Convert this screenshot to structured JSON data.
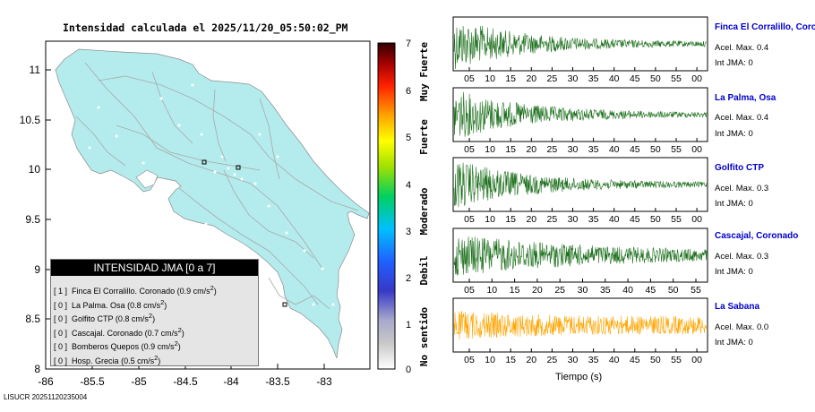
{
  "map": {
    "title": "Intensidad calculada el 2025/11/20_05:50:02_PM",
    "lon_ticks": [
      "-86",
      "-85.5",
      "-85",
      "-84.5",
      "-84",
      "-83.5",
      "-83"
    ],
    "lat_ticks": [
      "11",
      "10.5",
      "10",
      "9.5",
      "9",
      "8.5",
      "8"
    ],
    "land_color": "#b4eced",
    "road_color": "#a8a8a8"
  },
  "scale": {
    "ticks": [
      "7",
      "6",
      "5",
      "4",
      "3",
      "2",
      "1",
      "0"
    ],
    "labels": [
      "Muy Fuerte",
      "Fuerte",
      "Moderado",
      "Debil",
      "No sentido"
    ]
  },
  "legend": {
    "header": "INTENSIDAD JMA [0 a 7]",
    "rows": [
      {
        "level": "[ 1 ]",
        "station": "Finca El Corralillo. Coronado",
        "value": "(0.9 cm/s",
        "unit_sup": "2",
        "close": ")"
      },
      {
        "level": "[ 0 ]",
        "station": "La Palma. Osa",
        "value": "(0.8 cm/s",
        "unit_sup": "2",
        "close": ")"
      },
      {
        "level": "[ 0 ]",
        "station": "Golfito CTP",
        "value": "(0.8 cm/s",
        "unit_sup": "2",
        "close": ")"
      },
      {
        "level": "[ 0 ]",
        "station": "Cascajal. Coronado",
        "value": "(0.7 cm/s",
        "unit_sup": "2",
        "close": ")"
      },
      {
        "level": "[ 0 ]",
        "station": "Bomberos Quepos",
        "value": "(0.9 cm/s",
        "unit_sup": "2",
        "close": ")"
      },
      {
        "level": "[ 0 ]",
        "station": "Hosp. Grecia",
        "value": "(0.5 cm/s",
        "unit_sup": "2",
        "close": ")"
      }
    ]
  },
  "waveforms": {
    "x_ticks": [
      "05",
      "10",
      "15",
      "20",
      "25",
      "30",
      "35",
      "40",
      "45",
      "50",
      "55",
      "00"
    ],
    "x_ticks_alt": [
      "05",
      "10",
      "15",
      "20",
      "25",
      "30",
      "35",
      "40",
      "45",
      "50",
      "55"
    ],
    "x_axis_label": "Tiempo (s)",
    "green": "#1a6e1a",
    "orange": "#ffa500",
    "panels": [
      {
        "name": "Finca El Corralillo, Coronado",
        "acel": "Acel. Max. 0.4",
        "jma": "Int JMA: 0"
      },
      {
        "name": "La Palma, Osa",
        "acel": "Acel. Max. 0.4",
        "jma": "Int JMA: 0"
      },
      {
        "name": "Golfito CTP",
        "acel": "Acel. Max. 0.3",
        "jma": "Int JMA: 0"
      },
      {
        "name": "Cascajal, Coronado",
        "acel": "Acel. Max. 0.3",
        "jma": "Int JMA: 0"
      },
      {
        "name": "La Sabana",
        "acel": "Acel. Max. 0.0",
        "jma": "Int JMA: 0"
      }
    ]
  },
  "footer": "LISUCR 20251120235004"
}
